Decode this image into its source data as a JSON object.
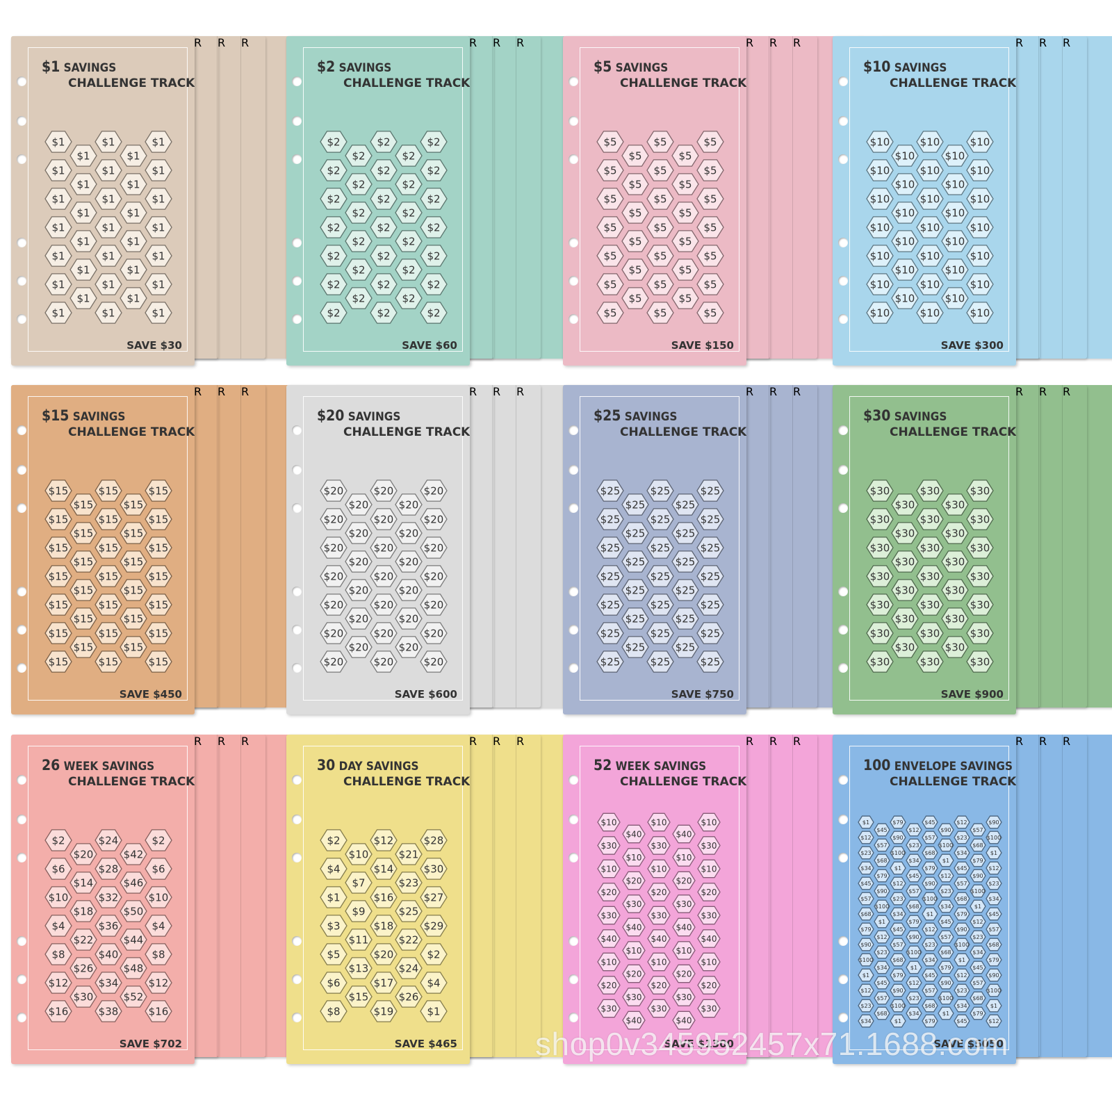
{
  "cards": [
    {
      "line1_amount": "$1",
      "line1_rest": "SAVINGS",
      "line2": "CHALLENGE TRACKER",
      "save": "SAVE $30",
      "color": "#dccbba",
      "hex_fill": "#f6eee4",
      "fixed_label": "$1"
    },
    {
      "line1_amount": "$2",
      "line1_rest": "SAVINGS",
      "line2": "CHALLENGE TRACKER",
      "save": "SAVE $60",
      "color": "#a3d3c6",
      "hex_fill": "#dff1ea",
      "fixed_label": "$2"
    },
    {
      "line1_amount": "$5",
      "line1_rest": "SAVINGS",
      "line2": "CHALLENGE TRACKER",
      "save": "SAVE $150",
      "color": "#ecbac5",
      "hex_fill": "#fae4e9",
      "fixed_label": "$5"
    },
    {
      "line1_amount": "$10",
      "line1_rest": "SAVINGS",
      "line2": "CHALLENGE TRACKER",
      "save": "SAVE $300",
      "color": "#a9d6ec",
      "hex_fill": "#def1fa",
      "fixed_label": "$10"
    },
    {
      "line1_amount": "$15",
      "line1_rest": "SAVINGS",
      "line2": "CHALLENGE TRACKER",
      "save": "SAVE $450",
      "color": "#e0ae82",
      "hex_fill": "#f8e3cd",
      "fixed_label": "$15"
    },
    {
      "line1_amount": "$20",
      "line1_rest": "SAVINGS",
      "line2": "CHALLENGE TRACKER",
      "save": "SAVE $600",
      "color": "#dcdcdc",
      "hex_fill": "#f1f1f1",
      "fixed_label": "$20"
    },
    {
      "line1_amount": "$25",
      "line1_rest": "SAVINGS",
      "line2": "CHALLENGE TRACKER",
      "save": "SAVE $750",
      "color": "#a8b4d0",
      "hex_fill": "#dfe5f2",
      "fixed_label": "$25"
    },
    {
      "line1_amount": "$30",
      "line1_rest": "SAVINGS",
      "line2": "CHALLENGE TRACKER",
      "save": "SAVE $900",
      "color": "#92bf8e",
      "hex_fill": "#dcefd8",
      "fixed_label": "$30"
    },
    {
      "line1_amount": "26",
      "line1_rest": "WEEK SAVINGS",
      "line2": "CHALLENGE TRACKER",
      "save": "SAVE $702",
      "color": "#f3aeaa",
      "hex_fill": "#fbdcda",
      "labels": [
        "$2",
        "$6",
        "$10",
        "$4",
        "$8",
        "$12",
        "$16",
        "$20",
        "$14",
        "$18",
        "$22",
        "$26",
        "$30",
        "$24",
        "$28",
        "$32",
        "$36",
        "$40",
        "$34",
        "$38",
        "$42",
        "$46",
        "$50",
        "$44",
        "$48",
        "$52"
      ]
    },
    {
      "line1_amount": "30",
      "line1_rest": "DAY SAVINGS",
      "line2": "CHALLENGE TRACKER",
      "save": "SAVE $465",
      "color": "#efdf8b",
      "hex_fill": "#fbf3c9",
      "labels": [
        "$2",
        "$4",
        "$1",
        "$3",
        "$5",
        "$6",
        "$8",
        "$10",
        "$7",
        "$9",
        "$11",
        "$13",
        "$15",
        "$12",
        "$14",
        "$16",
        "$18",
        "$20",
        "$17",
        "$19",
        "$21",
        "$23",
        "$25",
        "$22",
        "$24",
        "$26",
        "$28",
        "$30",
        "$27",
        "$29"
      ]
    },
    {
      "line1_amount": "52",
      "line1_rest": "WEEK SAVINGS",
      "line2": "CHALLENGE TRACKER",
      "save": "SAVE $1300",
      "color": "#f3a5d9",
      "hex_fill": "#fbdcf0",
      "labels": [
        "$10",
        "$30",
        "$10",
        "$20",
        "$30",
        "$40",
        "$10",
        "$20",
        "$30",
        "$40",
        "$10",
        "$20",
        "$30",
        "$40",
        "$10",
        "$20",
        "$30",
        "$40"
      ]
    },
    {
      "line1_amount": "100",
      "line1_rest": "ENVELOPE SAVINGS",
      "line2": "CHALLENGE TRACKER",
      "save": "SAVE $5050",
      "color": "#89b8e6",
      "hex_fill": "#d5e7f8",
      "labels": [
        "$1",
        "$12",
        "$23",
        "$34",
        "$45",
        "$57",
        "$68",
        "$79",
        "$90",
        "$100"
      ]
    }
  ],
  "back_fragments": [
    "R",
    "R",
    "R"
  ],
  "watermark": "shop0v345952457x71.1688.com"
}
